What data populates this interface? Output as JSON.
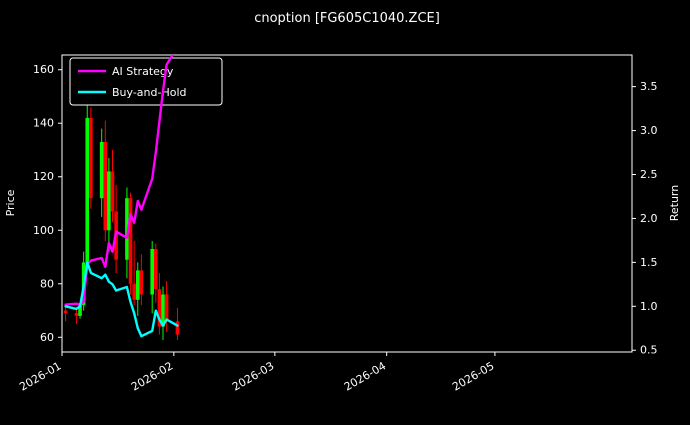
{
  "title": "cnoption [FG605C1040.ZCE]",
  "legend": {
    "items": [
      {
        "label": "AI Strategy",
        "color": "#ff00ff"
      },
      {
        "label": "Buy-and-Hold",
        "color": "#00ffff"
      }
    ]
  },
  "chart_data": {
    "type": "candlestick+line",
    "title": "cnoption [FG605C1040.ZCE]",
    "colors": {
      "up": "#00ff00",
      "down": "#ff0000",
      "background": "#000000",
      "foreground": "#ffffff"
    },
    "x_axis": {
      "domain": [
        "2026-01-01",
        "2026-06-08"
      ],
      "ticks": [
        {
          "date": "2026-01-01",
          "label": "2026-01"
        },
        {
          "date": "2026-02-01",
          "label": "2026-02"
        },
        {
          "date": "2026-03-01",
          "label": "2026-03"
        },
        {
          "date": "2026-04-01",
          "label": "2026-04"
        },
        {
          "date": "2026-05-01",
          "label": "2026-05"
        }
      ]
    },
    "price_axis": {
      "label": "Price",
      "min": 54.5,
      "max": 165.5,
      "ticks": [
        60,
        80,
        100,
        120,
        140,
        160
      ]
    },
    "return_axis": {
      "label": "Return",
      "min": 0.48,
      "max": 3.86,
      "ticks": [
        0.5,
        1.0,
        1.5,
        2.0,
        2.5,
        3.0,
        3.5
      ]
    },
    "dates": [
      "2026-01-02",
      "2026-01-05",
      "2026-01-06",
      "2026-01-07",
      "2026-01-08",
      "2026-01-09",
      "2026-01-12",
      "2026-01-13",
      "2026-01-14",
      "2026-01-15",
      "2026-01-16",
      "2026-01-19",
      "2026-01-20",
      "2026-01-21",
      "2026-01-22",
      "2026-01-23",
      "2026-01-26",
      "2026-01-27",
      "2026-01-28",
      "2026-01-29",
      "2026-01-30",
      "2026-02-02"
    ],
    "ohlc": [
      [
        70,
        72,
        66,
        69
      ],
      [
        69,
        71,
        65,
        68
      ],
      [
        68,
        73,
        67,
        72
      ],
      [
        72,
        92,
        70,
        88
      ],
      [
        88,
        148,
        86,
        142
      ],
      [
        142,
        146,
        108,
        112
      ],
      [
        112,
        138,
        105,
        133
      ],
      [
        133,
        141,
        96,
        100
      ],
      [
        100,
        127,
        92,
        122
      ],
      [
        122,
        130,
        103,
        107
      ],
      [
        107,
        117,
        84,
        89
      ],
      [
        89,
        116,
        82,
        112
      ],
      [
        112,
        114,
        76,
        80
      ],
      [
        80,
        96,
        72,
        74
      ],
      [
        74,
        88,
        68,
        85
      ],
      [
        85,
        91,
        72,
        76
      ],
      [
        76,
        96,
        69,
        93
      ],
      [
        93,
        95,
        73,
        78
      ],
      [
        78,
        84,
        61,
        64
      ],
      [
        64,
        79,
        59,
        76
      ],
      [
        76,
        81,
        62,
        66
      ],
      [
        66,
        71,
        59,
        61
      ]
    ],
    "series": [
      {
        "name": "AI Strategy",
        "axis": "return",
        "color": "#ff00ff",
        "values": [
          1.02,
          1.03,
          1.02,
          1.05,
          1.48,
          1.52,
          1.55,
          1.45,
          1.72,
          1.62,
          1.85,
          1.78,
          2.05,
          1.95,
          2.2,
          2.1,
          2.45,
          2.75,
          3.1,
          3.45,
          3.75,
          3.95
        ]
      },
      {
        "name": "Buy-and-Hold",
        "axis": "return",
        "color": "#00ffff",
        "values": [
          1.0,
          0.97,
          1.0,
          1.22,
          1.5,
          1.38,
          1.32,
          1.36,
          1.28,
          1.25,
          1.18,
          1.22,
          1.05,
          0.92,
          0.75,
          0.66,
          0.72,
          0.95,
          0.85,
          0.78,
          0.85,
          0.78
        ]
      }
    ]
  }
}
